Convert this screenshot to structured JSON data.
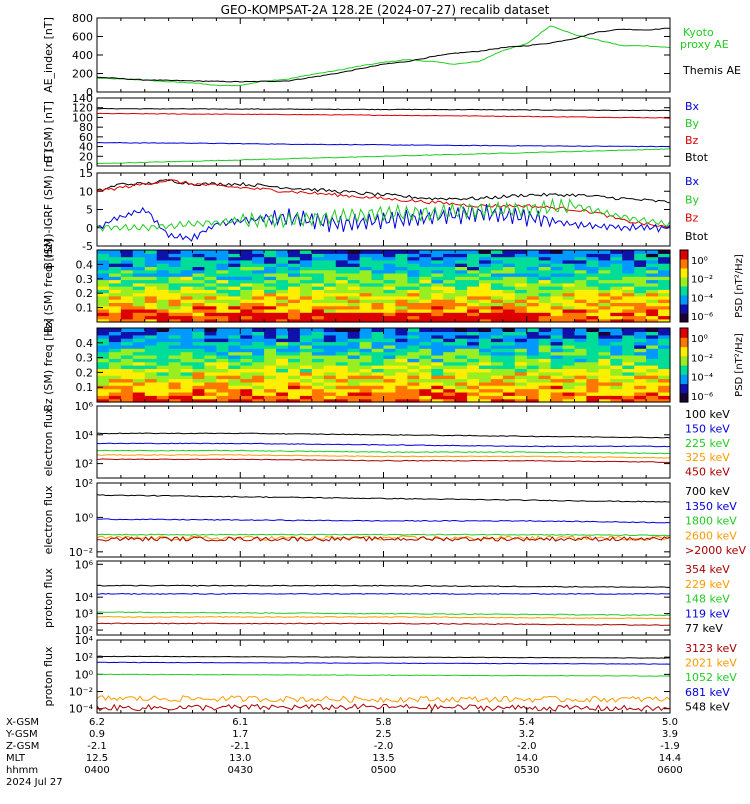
{
  "title": "GEO-KOMPSAT-2A 128.2E (2024-07-27) recalib dataset",
  "chart_data": [
    {
      "type": "line",
      "ylabel": "AE_index [nT]",
      "ylim": [
        0,
        800
      ],
      "yticks": [
        "0",
        "200",
        "400",
        "600",
        "800"
      ],
      "legend": [
        {
          "label": "Kyoto proxy AE",
          "color": "#22cc22"
        },
        {
          "label": "Themis AE",
          "color": "#000000"
        }
      ],
      "series": [
        {
          "name": "Kyoto proxy AE",
          "color": "#22cc22",
          "x": [
            0,
            5,
            10,
            15,
            20,
            25,
            30,
            35,
            40,
            45,
            50,
            55,
            60,
            65,
            70,
            75,
            80,
            85,
            90,
            95,
            100,
            105,
            110,
            115,
            120
          ],
          "values": [
            150,
            140,
            130,
            110,
            100,
            70,
            70,
            120,
            140,
            190,
            230,
            280,
            320,
            350,
            330,
            300,
            330,
            450,
            520,
            720,
            620,
            560,
            500,
            500,
            480
          ]
        },
        {
          "name": "Themis AE",
          "color": "#000000",
          "x": [
            0,
            10,
            20,
            30,
            40,
            50,
            60,
            65,
            70,
            75,
            80,
            85,
            90,
            95,
            100,
            105,
            110,
            115,
            120
          ],
          "values": [
            160,
            130,
            120,
            110,
            120,
            200,
            300,
            330,
            380,
            420,
            440,
            480,
            500,
            530,
            580,
            650,
            680,
            670,
            690
          ]
        }
      ]
    },
    {
      "type": "line",
      "ylabel": "B (SM) [nT]",
      "ylim": [
        0,
        140
      ],
      "yticks": [
        "0",
        "20",
        "40",
        "60",
        "80",
        "100",
        "120",
        "140"
      ],
      "legend": [
        {
          "label": "Bx",
          "color": "#0000dd"
        },
        {
          "label": "By",
          "color": "#22cc22"
        },
        {
          "label": "Bz",
          "color": "#dd0000"
        },
        {
          "label": "Btot",
          "color": "#000000"
        }
      ],
      "series": [
        {
          "name": "Btot",
          "color": "#000000",
          "x": [
            0,
            40,
            80,
            120
          ],
          "values": [
            118,
            117,
            116,
            114
          ]
        },
        {
          "name": "Bz",
          "color": "#dd0000",
          "x": [
            0,
            40,
            80,
            120
          ],
          "values": [
            108,
            106,
            103,
            99
          ]
        },
        {
          "name": "Bx",
          "color": "#0000dd",
          "x": [
            0,
            20,
            40,
            80,
            120
          ],
          "values": [
            48,
            47,
            45,
            42,
            40
          ]
        },
        {
          "name": "By",
          "color": "#22cc22",
          "x": [
            0,
            20,
            40,
            60,
            80,
            100,
            120
          ],
          "values": [
            5,
            10,
            15,
            20,
            25,
            30,
            35
          ]
        }
      ]
    },
    {
      "type": "line",
      "ylabel": "B (SM)-IGRF (SM) [nT]",
      "ylim": [
        -5,
        15
      ],
      "yticks": [
        "-5",
        "0",
        "5",
        "10",
        "15"
      ],
      "legend": [
        {
          "label": "Bx",
          "color": "#0000dd"
        },
        {
          "label": "By",
          "color": "#22cc22"
        },
        {
          "label": "Bz",
          "color": "#dd0000"
        },
        {
          "label": "Btot",
          "color": "#000000"
        }
      ],
      "series": [
        {
          "name": "Btot",
          "color": "#000000",
          "x": [
            0,
            5,
            10,
            15,
            20,
            30,
            40,
            50,
            60,
            70,
            80,
            90,
            100,
            110,
            120
          ],
          "values": [
            10,
            12,
            12,
            13,
            12,
            12,
            11,
            10,
            9,
            8,
            8,
            9,
            9,
            8,
            7
          ]
        },
        {
          "name": "Bz",
          "color": "#dd0000",
          "x": [
            0,
            5,
            10,
            15,
            20,
            30,
            40,
            50,
            60,
            70,
            80,
            90,
            100,
            105,
            110,
            115,
            120
          ],
          "values": [
            10,
            11,
            12,
            13,
            12,
            11,
            10,
            9,
            8,
            7,
            6,
            6,
            5,
            4,
            2,
            1,
            0
          ]
        },
        {
          "name": "Bx",
          "color": "#0000dd",
          "x": [
            0,
            5,
            10,
            15,
            20,
            25,
            30,
            40,
            50,
            60,
            70,
            80,
            90,
            100,
            110,
            120
          ],
          "values": [
            0,
            3,
            5,
            -2,
            -3,
            1,
            2,
            3,
            1,
            2,
            3,
            4,
            3,
            1,
            0,
            0
          ]
        },
        {
          "name": "By",
          "color": "#22cc22",
          "x": [
            0,
            10,
            20,
            30,
            40,
            50,
            60,
            70,
            80,
            90,
            100,
            110,
            120
          ],
          "values": [
            0,
            0,
            1,
            2,
            2,
            3,
            4,
            4,
            5,
            5,
            6,
            3,
            1
          ]
        }
      ]
    },
    {
      "type": "heatmap",
      "ylabel": "Bx (SM) freq [Hz]",
      "ylim": [
        0,
        0.5
      ],
      "yticks": [
        "0.1",
        "0.2",
        "0.3",
        "0.4"
      ],
      "colorbar_label": "PSD [nT²/Hz]",
      "colorbar_ticks": [
        "10⁰",
        "10⁻²",
        "10⁻⁴",
        "10⁻⁶"
      ],
      "colorscale": [
        "#1a0033",
        "#1010aa",
        "#0099ff",
        "#00dd99",
        "#99ee22",
        "#ffee00",
        "#ff7700",
        "#dd0000"
      ]
    },
    {
      "type": "heatmap",
      "ylabel": "Bz (SM) freq [Hz]",
      "ylim": [
        0,
        0.5
      ],
      "yticks": [
        "0.1",
        "0.2",
        "0.3",
        "0.4"
      ],
      "colorbar_label": "PSD [nT²/Hz]",
      "colorbar_ticks": [
        "10⁰",
        "10⁻²",
        "10⁻⁴",
        "10⁻⁶"
      ],
      "colorscale": [
        "#1a0033",
        "#1010aa",
        "#0099ff",
        "#00dd99",
        "#99ee22",
        "#ffee00",
        "#ff7700",
        "#dd0000"
      ]
    },
    {
      "type": "line",
      "log": true,
      "ylabel": "electron flux",
      "ylim": [
        1,
        6
      ],
      "yticks": [
        "10²",
        "10⁴",
        "10⁶"
      ],
      "legend": [
        {
          "label": "100 keV",
          "color": "#000000"
        },
        {
          "label": "150 keV",
          "color": "#0000dd"
        },
        {
          "label": "225 keV",
          "color": "#22cc22"
        },
        {
          "label": "325 keV",
          "color": "#ff9900"
        },
        {
          "label": "450 keV",
          "color": "#aa0000"
        }
      ],
      "series": [
        {
          "name": "100 keV",
          "color": "#000000",
          "x": [
            0,
            30,
            60,
            90,
            120
          ],
          "values": [
            4.1,
            4.1,
            4.0,
            3.9,
            3.8
          ]
        },
        {
          "name": "150 keV",
          "color": "#0000dd",
          "x": [
            0,
            30,
            60,
            90,
            120
          ],
          "values": [
            3.4,
            3.4,
            3.3,
            3.2,
            3.2
          ]
        },
        {
          "name": "225 keV",
          "color": "#22cc22",
          "x": [
            0,
            30,
            60,
            90,
            120
          ],
          "values": [
            2.9,
            2.9,
            2.8,
            2.8,
            2.7
          ]
        },
        {
          "name": "325 keV",
          "color": "#ff9900",
          "x": [
            0,
            30,
            60,
            90,
            120
          ],
          "values": [
            2.6,
            2.6,
            2.5,
            2.5,
            2.4
          ]
        },
        {
          "name": "450 keV",
          "color": "#aa0000",
          "x": [
            0,
            30,
            60,
            90,
            120
          ],
          "values": [
            2.3,
            2.3,
            2.2,
            2.2,
            2.1
          ]
        }
      ]
    },
    {
      "type": "line",
      "log": true,
      "ylabel": "electron flux",
      "ylim": [
        -2.3,
        2
      ],
      "yticks": [
        "10⁻²",
        "10⁰",
        "10²"
      ],
      "legend": [
        {
          "label": "700 keV",
          "color": "#000000"
        },
        {
          "label": "1350 keV",
          "color": "#0000dd"
        },
        {
          "label": "1800 keV",
          "color": "#22cc22"
        },
        {
          "label": "2600 keV",
          "color": "#ff9900"
        },
        {
          "label": ">2000 keV",
          "color": "#aa0000"
        }
      ],
      "series": [
        {
          "name": "700 keV",
          "color": "#000000",
          "x": [
            0,
            30,
            60,
            90,
            120
          ],
          "values": [
            1.3,
            1.2,
            1.1,
            1.0,
            0.9
          ]
        },
        {
          "name": "1350 keV",
          "color": "#0000dd",
          "x": [
            0,
            30,
            60,
            90,
            120
          ],
          "values": [
            -0.1,
            -0.15,
            -0.2,
            -0.2,
            -0.3
          ]
        },
        {
          "name": "1800 keV",
          "color": "#22cc22",
          "x": [
            0,
            30,
            60,
            90,
            120
          ],
          "values": [
            -1.0,
            -1.0,
            -1.0,
            -1.0,
            -1.05
          ]
        },
        {
          "name": "2600 keV",
          "color": "#ff9900",
          "x": [
            0,
            30,
            60,
            90,
            120
          ],
          "values": [
            -1.2,
            -1.2,
            -1.2,
            -1.2,
            -1.2
          ]
        },
        {
          "name": ">2000 keV",
          "color": "#aa0000",
          "x": [
            0,
            30,
            60,
            90,
            120
          ],
          "values": [
            -1.25,
            -1.25,
            -1.25,
            -1.25,
            -1.25
          ]
        }
      ]
    },
    {
      "type": "line",
      "log": true,
      "ylabel": "proton flux",
      "ylim": [
        1.7,
        6.2
      ],
      "yticks": [
        "10²",
        "10³",
        "10⁴",
        "10⁶"
      ],
      "legend": [
        {
          "label": "354 keV",
          "color": "#aa0000"
        },
        {
          "label": "229 keV",
          "color": "#ff9900"
        },
        {
          "label": "148 keV",
          "color": "#22cc22"
        },
        {
          "label": "119 keV",
          "color": "#0000dd"
        },
        {
          "label": "77 keV",
          "color": "#000000"
        }
      ],
      "series": [
        {
          "name": "77 keV",
          "color": "#000000",
          "x": [
            0,
            60,
            120
          ],
          "values": [
            4.7,
            4.7,
            4.6
          ]
        },
        {
          "name": "119 keV",
          "color": "#0000dd",
          "x": [
            0,
            60,
            120
          ],
          "values": [
            4.2,
            4.2,
            4.2
          ]
        },
        {
          "name": "148 keV",
          "color": "#22cc22",
          "x": [
            0,
            60,
            120
          ],
          "values": [
            3.1,
            3.0,
            2.9
          ]
        },
        {
          "name": "229 keV",
          "color": "#ff9900",
          "x": [
            0,
            60,
            120
          ],
          "values": [
            2.8,
            2.8,
            2.7
          ]
        },
        {
          "name": "354 keV",
          "color": "#aa0000",
          "x": [
            0,
            60,
            120
          ],
          "values": [
            2.4,
            2.4,
            2.3
          ]
        }
      ]
    },
    {
      "type": "line",
      "log": true,
      "ylabel": "proton flux",
      "ylim": [
        -4.5,
        4
      ],
      "yticks": [
        "10⁻⁴",
        "10⁻²",
        "10⁰",
        "10²",
        "10⁴"
      ],
      "legend": [
        {
          "label": "3123 keV",
          "color": "#aa0000"
        },
        {
          "label": "2021 keV",
          "color": "#ff9900"
        },
        {
          "label": "1052 keV",
          "color": "#22cc22"
        },
        {
          "label": "681 keV",
          "color": "#0000dd"
        },
        {
          "label": "548 keV",
          "color": "#000000"
        }
      ],
      "series": [
        {
          "name": "548 keV",
          "color": "#000000",
          "x": [
            0,
            60,
            120
          ],
          "values": [
            2.1,
            2.0,
            1.9
          ]
        },
        {
          "name": "681 keV",
          "color": "#0000dd",
          "x": [
            0,
            60,
            120
          ],
          "values": [
            1.4,
            1.3,
            1.2
          ]
        },
        {
          "name": "1052 keV",
          "color": "#22cc22",
          "x": [
            0,
            60,
            120
          ],
          "values": [
            0.0,
            -0.1,
            -0.2
          ]
        },
        {
          "name": "2021 keV",
          "color": "#ff9900",
          "x": [
            0,
            60,
            120
          ],
          "values": [
            -2.8,
            -2.9,
            -2.9
          ]
        },
        {
          "name": "3123 keV",
          "color": "#aa0000",
          "x": [
            0,
            60,
            120
          ],
          "values": [
            -3.9,
            -3.8,
            -4.0
          ]
        }
      ]
    }
  ],
  "xaxis": {
    "row_labels": [
      "X-GSM",
      "Y-GSM",
      "Z-GSM",
      "MLT",
      "hhmm",
      "2024 Jul 27"
    ],
    "columns": [
      {
        "x": 0,
        "values": [
          "6.2",
          "0.9",
          "-2.1",
          "12.5",
          "0400"
        ]
      },
      {
        "x": 30,
        "values": [
          "6.1",
          "1.7",
          "-2.1",
          "13.0",
          "0430"
        ]
      },
      {
        "x": 60,
        "values": [
          "5.8",
          "2.5",
          "-2.0",
          "13.5",
          "0500"
        ]
      },
      {
        "x": 90,
        "values": [
          "5.4",
          "3.2",
          "-2.0",
          "14.0",
          "0530"
        ]
      },
      {
        "x": 120,
        "values": [
          "5.0",
          "3.9",
          "-1.9",
          "14.4",
          "0600"
        ]
      }
    ]
  }
}
